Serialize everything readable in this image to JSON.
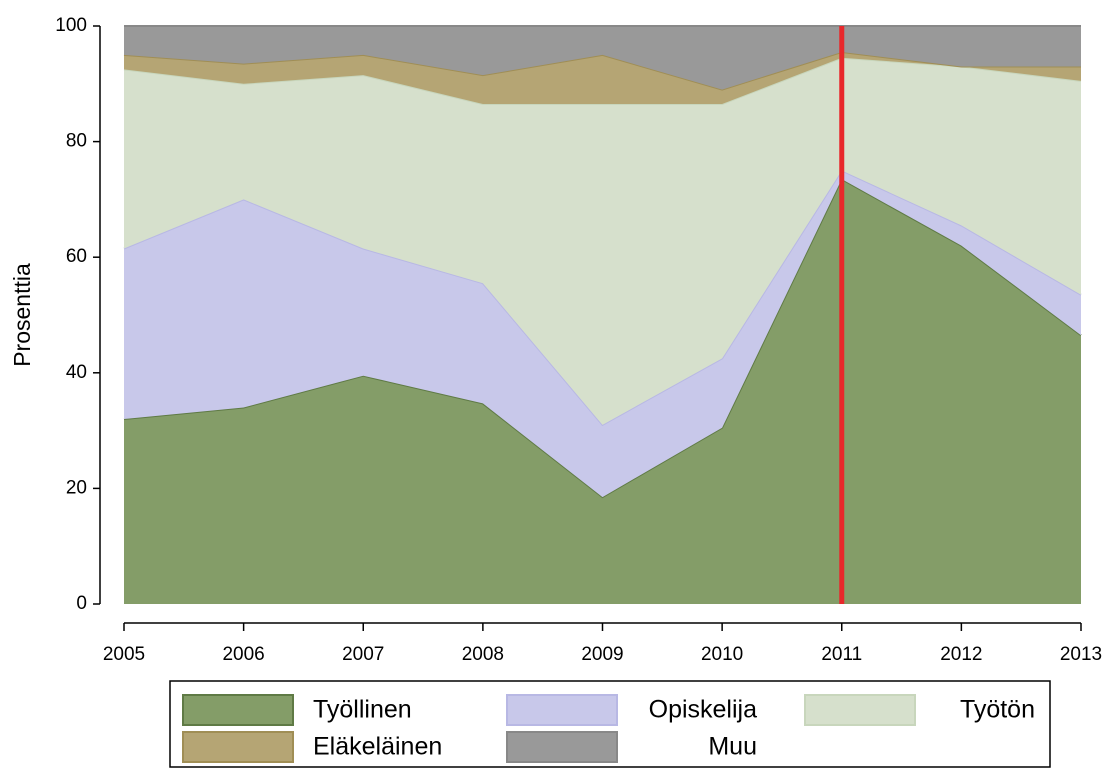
{
  "chart_data": {
    "type": "stacked_area",
    "y_label": "Prosenttia",
    "x": [
      2005,
      2006,
      2007,
      2008,
      2009,
      2010,
      2011,
      2012,
      2013
    ],
    "xlim": [
      2005,
      2013
    ],
    "xticks": [
      2005,
      2006,
      2007,
      2008,
      2009,
      2010,
      2011,
      2012,
      2013
    ],
    "ylim": [
      0,
      100
    ],
    "yticks": [
      0,
      20,
      40,
      60,
      80,
      100
    ],
    "vline": {
      "x": 2011,
      "color": "#e8282b"
    },
    "legend": "bottom",
    "series": [
      {
        "name": "Työllinen",
        "color": "#849d68",
        "edge": "#5f7a45",
        "values": [
          32,
          34,
          39.5,
          34.7,
          18.5,
          30.5,
          73.5,
          62,
          46.5
        ]
      },
      {
        "name": "Opiskelija",
        "color": "#c8c8ea",
        "edge": "#b8b8e4",
        "values": [
          29.5,
          36,
          22,
          20.8,
          12.5,
          12,
          1.5,
          3.5,
          7
        ]
      },
      {
        "name": "Työtön",
        "color": "#d6e0cc",
        "edge": "#c8d6bc",
        "values": [
          31,
          20,
          30,
          31,
          55.5,
          44,
          19.5,
          27.5,
          37
        ]
      },
      {
        "name": "Eläkeläinen",
        "color": "#b5a574",
        "edge": "#a08e55",
        "values": [
          2.5,
          3.5,
          3.5,
          5,
          8.5,
          2.5,
          1,
          0,
          2.5
        ]
      },
      {
        "name": "Muu",
        "color": "#999999",
        "edge": "#888888",
        "values": [
          5,
          6.5,
          5,
          8.5,
          5,
          11,
          4.5,
          7,
          7
        ]
      }
    ]
  }
}
